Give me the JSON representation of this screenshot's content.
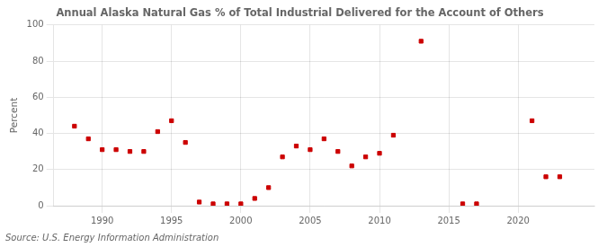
{
  "chart_data": {
    "type": "scatter",
    "title": "Annual Alaska Natural Gas % of Total Industrial Delivered for the Account of Others",
    "ylabel": "Percent",
    "annotation": "Source: U.S. Energy Information Administration",
    "x": [
      1988,
      1989,
      1990,
      1991,
      1992,
      1993,
      1994,
      1995,
      1996,
      1997,
      1998,
      1999,
      2000,
      2001,
      2002,
      2003,
      2004,
      2005,
      2006,
      2007,
      2008,
      2009,
      2010,
      2011,
      2013,
      2016,
      2017,
      2021,
      2022,
      2023
    ],
    "values": [
      44,
      37,
      31,
      31,
      30,
      30,
      41,
      47,
      35,
      2,
      1,
      1,
      1,
      4,
      10,
      27,
      33,
      31,
      37,
      30,
      22,
      27,
      29,
      39,
      91,
      1,
      1,
      47,
      16,
      16
    ],
    "color": "#cc0000",
    "marker": "square",
    "xlim": [
      1986.5,
      2025.5
    ],
    "ylim": [
      0,
      100
    ],
    "xticks": [
      1990,
      1995,
      2000,
      2005,
      2010,
      2015,
      2020
    ],
    "yticks": [
      0,
      20,
      40,
      60,
      80,
      100
    ],
    "grid": true
  }
}
